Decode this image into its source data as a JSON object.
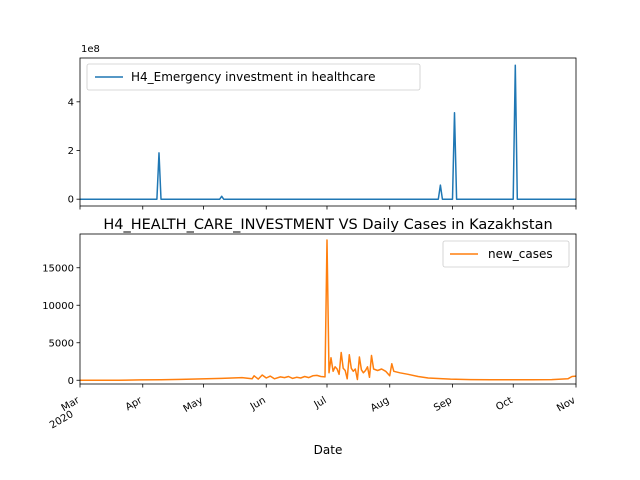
{
  "chart_data": [
    {
      "type": "line",
      "title": "",
      "xlabel": "",
      "ylabel": "",
      "y_offset_text": "1e8",
      "ylim": [
        -0.28,
        5.8
      ],
      "yticks": [
        0,
        2,
        4
      ],
      "grid": false,
      "legend_position": "upper-left",
      "series": [
        {
          "name": "H4_Emergency investment in healthcare",
          "color": "#1f77b4",
          "points": [
            [
              "2020-03-01",
              0
            ],
            [
              "2020-04-08",
              0
            ],
            [
              "2020-04-09",
              1.9
            ],
            [
              "2020-04-10",
              0
            ],
            [
              "2020-05-09",
              0
            ],
            [
              "2020-05-10",
              0.12
            ],
            [
              "2020-05-11",
              0
            ],
            [
              "2020-08-25",
              0
            ],
            [
              "2020-08-26",
              0.58
            ],
            [
              "2020-08-27",
              0
            ],
            [
              "2020-09-01",
              0
            ],
            [
              "2020-09-02",
              3.55
            ],
            [
              "2020-09-03",
              0
            ],
            [
              "2020-10-01",
              0
            ],
            [
              "2020-10-02",
              5.5
            ],
            [
              "2020-10-03",
              0
            ],
            [
              "2020-11-01",
              0
            ]
          ]
        }
      ]
    },
    {
      "type": "line",
      "title": "H4_HEALTH_CARE_INVESTMENT VS Daily Cases in Kazakhstan",
      "xlabel": "Date",
      "ylabel": "",
      "ylim": [
        -500,
        19500
      ],
      "yticks": [
        0,
        5000,
        10000,
        15000
      ],
      "xlim": [
        "2020-03-01",
        "2020-11-01"
      ],
      "grid": false,
      "legend_position": "upper-right",
      "series": [
        {
          "name": "new_cases",
          "color": "#ff7f0e",
          "points": [
            [
              "2020-03-01",
              0
            ],
            [
              "2020-03-13",
              0
            ],
            [
              "2020-03-20",
              10
            ],
            [
              "2020-03-31",
              40
            ],
            [
              "2020-04-10",
              60
            ],
            [
              "2020-04-20",
              120
            ],
            [
              "2020-04-30",
              180
            ],
            [
              "2020-05-10",
              250
            ],
            [
              "2020-05-20",
              350
            ],
            [
              "2020-05-25",
              200
            ],
            [
              "2020-05-26",
              600
            ],
            [
              "2020-05-28",
              150
            ],
            [
              "2020-05-30",
              700
            ],
            [
              "2020-06-01",
              300
            ],
            [
              "2020-06-03",
              550
            ],
            [
              "2020-06-05",
              200
            ],
            [
              "2020-06-08",
              450
            ],
            [
              "2020-06-10",
              350
            ],
            [
              "2020-06-12",
              500
            ],
            [
              "2020-06-14",
              250
            ],
            [
              "2020-06-16",
              400
            ],
            [
              "2020-06-18",
              300
            ],
            [
              "2020-06-20",
              500
            ],
            [
              "2020-06-22",
              350
            ],
            [
              "2020-06-24",
              600
            ],
            [
              "2020-06-26",
              650
            ],
            [
              "2020-06-28",
              500
            ],
            [
              "2020-06-30",
              450
            ],
            [
              "2020-07-01",
              18700
            ],
            [
              "2020-07-02",
              1000
            ],
            [
              "2020-07-03",
              3000
            ],
            [
              "2020-07-04",
              1200
            ],
            [
              "2020-07-05",
              1800
            ],
            [
              "2020-07-06",
              1500
            ],
            [
              "2020-07-07",
              800
            ],
            [
              "2020-07-08",
              3700
            ],
            [
              "2020-07-09",
              1600
            ],
            [
              "2020-07-10",
              1300
            ],
            [
              "2020-07-11",
              200
            ],
            [
              "2020-07-12",
              3400
            ],
            [
              "2020-07-13",
              1600
            ],
            [
              "2020-07-14",
              1200
            ],
            [
              "2020-07-15",
              1500
            ],
            [
              "2020-07-16",
              100
            ],
            [
              "2020-07-17",
              3100
            ],
            [
              "2020-07-18",
              1400
            ],
            [
              "2020-07-19",
              1000
            ],
            [
              "2020-07-20",
              1300
            ],
            [
              "2020-07-21",
              1800
            ],
            [
              "2020-07-22",
              400
            ],
            [
              "2020-07-23",
              3300
            ],
            [
              "2020-07-24",
              1500
            ],
            [
              "2020-07-26",
              1300
            ],
            [
              "2020-07-28",
              1500
            ],
            [
              "2020-07-30",
              1200
            ],
            [
              "2020-08-01",
              600
            ],
            [
              "2020-08-02",
              2200
            ],
            [
              "2020-08-03",
              1200
            ],
            [
              "2020-08-06",
              1000
            ],
            [
              "2020-08-10",
              800
            ],
            [
              "2020-08-15",
              500
            ],
            [
              "2020-08-20",
              300
            ],
            [
              "2020-08-31",
              150
            ],
            [
              "2020-09-10",
              80
            ],
            [
              "2020-09-20",
              70
            ],
            [
              "2020-09-30",
              60
            ],
            [
              "2020-10-10",
              70
            ],
            [
              "2020-10-20",
              90
            ],
            [
              "2020-10-28",
              200
            ],
            [
              "2020-10-30",
              500
            ],
            [
              "2020-11-01",
              550
            ]
          ]
        }
      ]
    }
  ],
  "x_ticks": [
    {
      "date": "2020-03-01",
      "label": "Mar",
      "sublabel": "2020"
    },
    {
      "date": "2020-04-01",
      "label": "Apr",
      "sublabel": ""
    },
    {
      "date": "2020-05-01",
      "label": "May",
      "sublabel": ""
    },
    {
      "date": "2020-06-01",
      "label": "Jun",
      "sublabel": ""
    },
    {
      "date": "2020-07-01",
      "label": "Jul",
      "sublabel": ""
    },
    {
      "date": "2020-08-01",
      "label": "Aug",
      "sublabel": ""
    },
    {
      "date": "2020-09-01",
      "label": "Sep",
      "sublabel": ""
    },
    {
      "date": "2020-10-01",
      "label": "Oct",
      "sublabel": ""
    },
    {
      "date": "2020-11-01",
      "label": "Nov",
      "sublabel": ""
    }
  ]
}
